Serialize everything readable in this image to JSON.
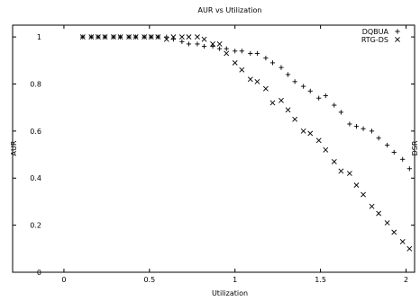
{
  "chart_data": {
    "type": "scatter",
    "title": "AUR vs Utilization",
    "xlabel": "Utilization",
    "ylabel": "AUR",
    "y2label": "DSR",
    "xlim": [
      -0.3,
      2.05
    ],
    "ylim": [
      0,
      1.05
    ],
    "xticks": [
      {
        "v": 0,
        "label": "0"
      },
      {
        "v": 0.5,
        "label": "0.5"
      },
      {
        "v": 1,
        "label": "1"
      },
      {
        "v": 1.5,
        "label": "1.5"
      },
      {
        "v": 2,
        "label": "2"
      }
    ],
    "yticks": [
      {
        "v": 0,
        "label": "0"
      },
      {
        "v": 0.2,
        "label": "0.2"
      },
      {
        "v": 0.4,
        "label": "0.4"
      },
      {
        "v": 0.6,
        "label": "0.6"
      },
      {
        "v": 0.8,
        "label": "0.8"
      },
      {
        "v": 1,
        "label": "1"
      }
    ],
    "grid": false,
    "legend_position": "top-right",
    "series": [
      {
        "name": "DQBUA",
        "marker": "plus",
        "points": [
          [
            0.11,
            1.0
          ],
          [
            0.16,
            1.0
          ],
          [
            0.2,
            1.0
          ],
          [
            0.24,
            1.0
          ],
          [
            0.29,
            1.0
          ],
          [
            0.33,
            1.0
          ],
          [
            0.38,
            1.0
          ],
          [
            0.42,
            1.0
          ],
          [
            0.47,
            1.0
          ],
          [
            0.51,
            1.0
          ],
          [
            0.55,
            1.0
          ],
          [
            0.6,
            1.0
          ],
          [
            0.64,
            0.99
          ],
          [
            0.69,
            0.98
          ],
          [
            0.73,
            0.97
          ],
          [
            0.78,
            0.97
          ],
          [
            0.82,
            0.96
          ],
          [
            0.87,
            0.96
          ],
          [
            0.91,
            0.95
          ],
          [
            0.95,
            0.95
          ],
          [
            1.0,
            0.94
          ],
          [
            1.04,
            0.94
          ],
          [
            1.09,
            0.93
          ],
          [
            1.13,
            0.93
          ],
          [
            1.18,
            0.91
          ],
          [
            1.22,
            0.89
          ],
          [
            1.27,
            0.87
          ],
          [
            1.31,
            0.84
          ],
          [
            1.35,
            0.81
          ],
          [
            1.4,
            0.79
          ],
          [
            1.44,
            0.77
          ],
          [
            1.49,
            0.74
          ],
          [
            1.53,
            0.75
          ],
          [
            1.58,
            0.71
          ],
          [
            1.62,
            0.68
          ],
          [
            1.67,
            0.63
          ],
          [
            1.71,
            0.62
          ],
          [
            1.75,
            0.61
          ],
          [
            1.8,
            0.6
          ],
          [
            1.84,
            0.57
          ],
          [
            1.89,
            0.54
          ],
          [
            1.93,
            0.51
          ],
          [
            1.98,
            0.48
          ],
          [
            2.02,
            0.44
          ]
        ]
      },
      {
        "name": "RTG-DS",
        "marker": "cross",
        "points": [
          [
            0.11,
            1.0
          ],
          [
            0.16,
            1.0
          ],
          [
            0.2,
            1.0
          ],
          [
            0.24,
            1.0
          ],
          [
            0.29,
            1.0
          ],
          [
            0.33,
            1.0
          ],
          [
            0.38,
            1.0
          ],
          [
            0.42,
            1.0
          ],
          [
            0.47,
            1.0
          ],
          [
            0.51,
            1.0
          ],
          [
            0.55,
            1.0
          ],
          [
            0.6,
            0.99
          ],
          [
            0.64,
            1.0
          ],
          [
            0.69,
            1.0
          ],
          [
            0.73,
            1.0
          ],
          [
            0.78,
            1.0
          ],
          [
            0.82,
            0.99
          ],
          [
            0.87,
            0.97
          ],
          [
            0.91,
            0.97
          ],
          [
            0.95,
            0.93
          ],
          [
            1.0,
            0.89
          ],
          [
            1.04,
            0.86
          ],
          [
            1.09,
            0.82
          ],
          [
            1.13,
            0.81
          ],
          [
            1.18,
            0.78
          ],
          [
            1.22,
            0.72
          ],
          [
            1.27,
            0.73
          ],
          [
            1.31,
            0.69
          ],
          [
            1.35,
            0.65
          ],
          [
            1.4,
            0.6
          ],
          [
            1.44,
            0.59
          ],
          [
            1.49,
            0.56
          ],
          [
            1.53,
            0.52
          ],
          [
            1.58,
            0.47
          ],
          [
            1.62,
            0.43
          ],
          [
            1.67,
            0.42
          ],
          [
            1.71,
            0.37
          ],
          [
            1.75,
            0.33
          ],
          [
            1.8,
            0.28
          ],
          [
            1.84,
            0.25
          ],
          [
            1.89,
            0.21
          ],
          [
            1.93,
            0.17
          ],
          [
            1.98,
            0.13
          ],
          [
            2.02,
            0.1
          ]
        ]
      }
    ]
  }
}
